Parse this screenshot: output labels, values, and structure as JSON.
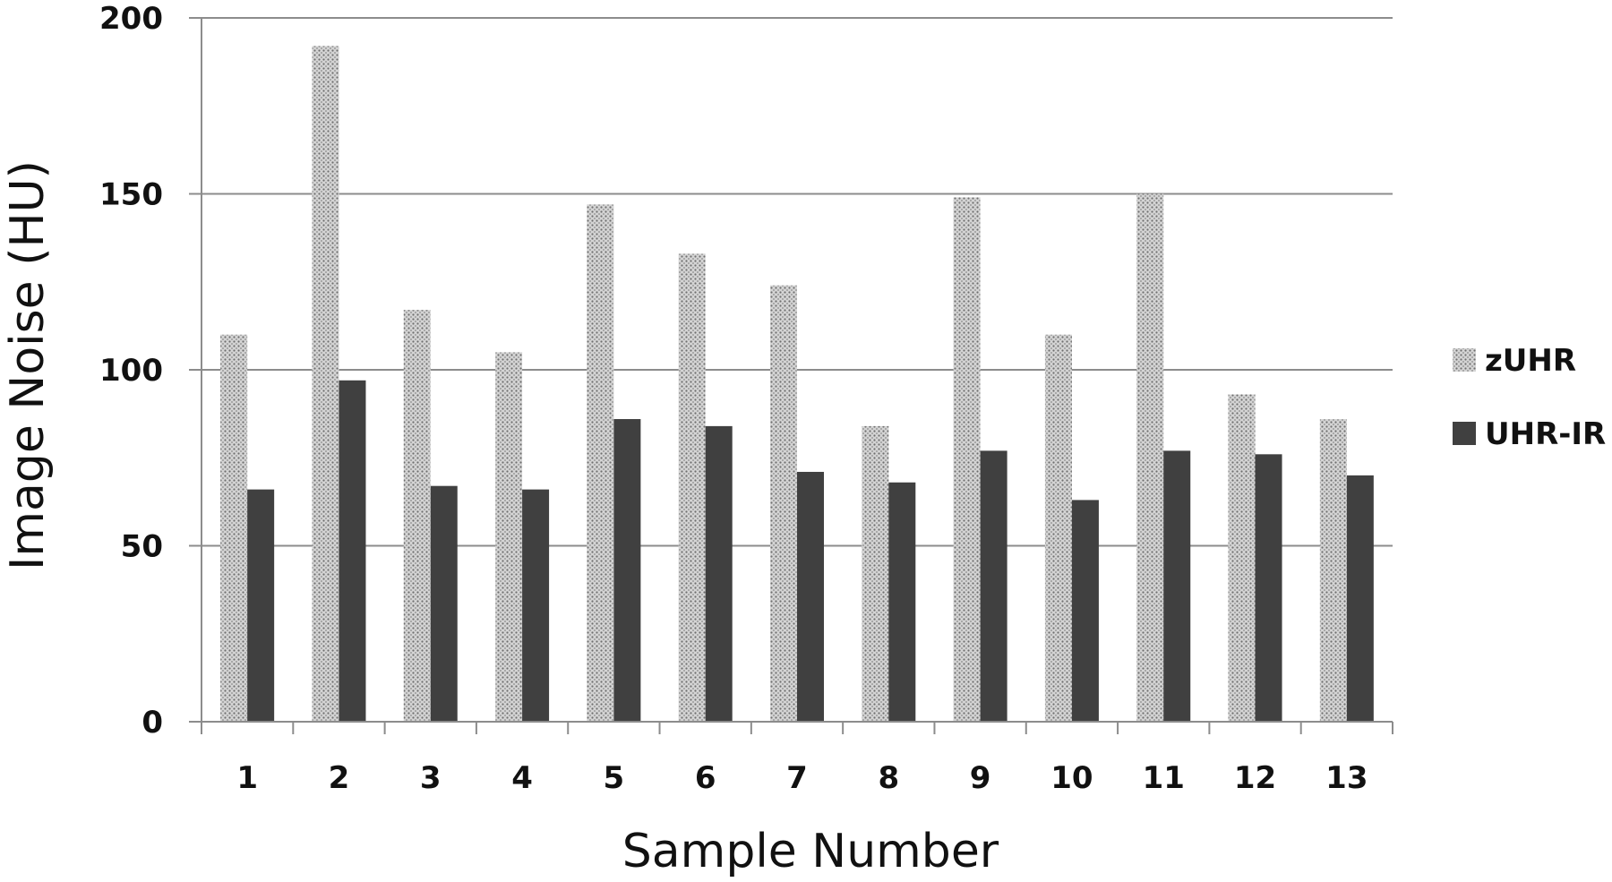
{
  "chart_data": {
    "type": "bar",
    "title": "",
    "xlabel": "Sample Number",
    "ylabel": "Image Noise (HU)",
    "ylim": [
      0,
      200
    ],
    "yticks": [
      0,
      50,
      100,
      150,
      200
    ],
    "grid": true,
    "legend_position": "right",
    "categories": [
      "1",
      "2",
      "3",
      "4",
      "5",
      "6",
      "7",
      "8",
      "9",
      "10",
      "11",
      "12",
      "13"
    ],
    "series": [
      {
        "name": "zUHR",
        "color": "#bdbdbd",
        "pattern": "dotted",
        "values": [
          110,
          192,
          117,
          105,
          147,
          133,
          124,
          84,
          149,
          110,
          150,
          93,
          86
        ]
      },
      {
        "name": "UHR-IR",
        "color": "#404040",
        "pattern": "solid",
        "values": [
          66,
          97,
          67,
          66,
          86,
          84,
          71,
          68,
          77,
          63,
          77,
          76,
          70
        ]
      }
    ]
  }
}
